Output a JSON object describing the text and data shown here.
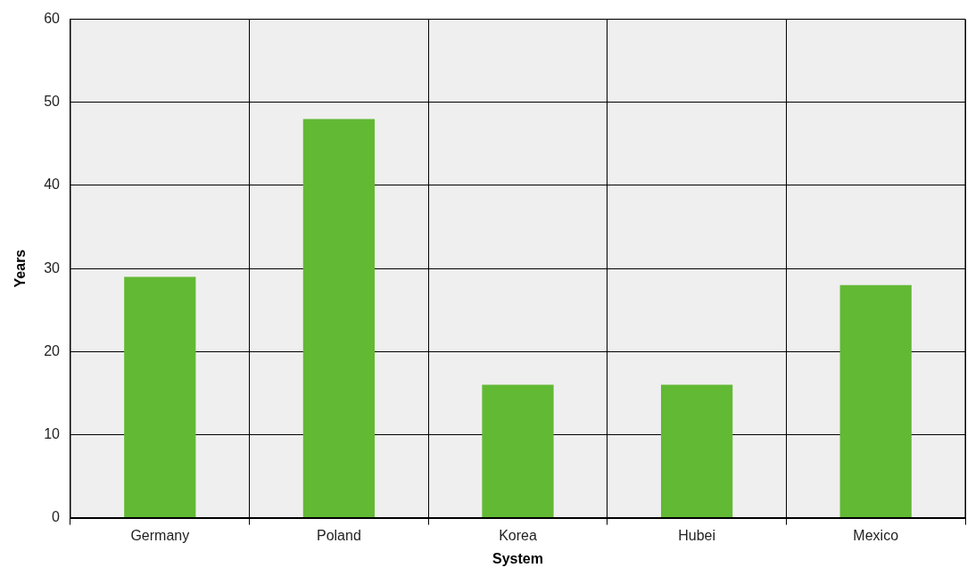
{
  "chart_data": {
    "type": "bar",
    "xlabel": "System",
    "ylabel": "Years",
    "categories": [
      "Germany",
      "Poland",
      "Korea",
      "Hubei",
      "Mexico"
    ],
    "values": [
      29,
      48,
      16,
      16,
      28
    ],
    "color": "#62b934",
    "ylim": [
      0,
      60
    ],
    "yticks": [
      0,
      10,
      20,
      30,
      40,
      50,
      60
    ],
    "grid": true,
    "legend": false
  }
}
